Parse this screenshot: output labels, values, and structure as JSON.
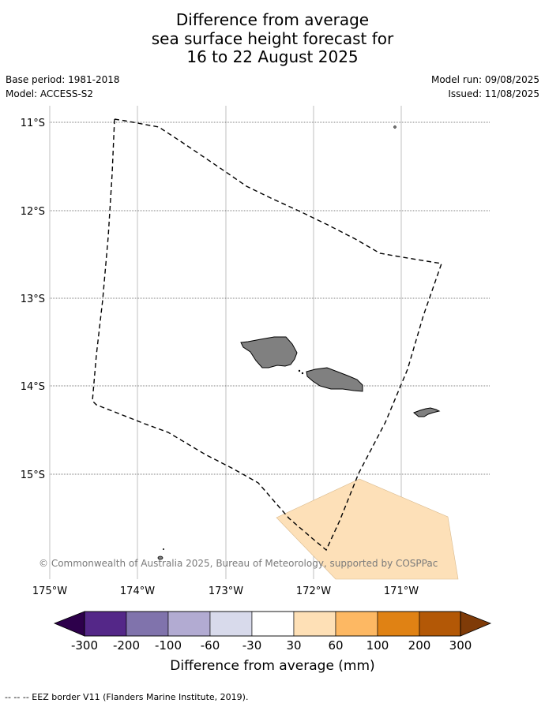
{
  "title": {
    "line1": "Difference from average",
    "line2": "sea surface height forecast for",
    "line3": "16 to 22 August 2025"
  },
  "meta": {
    "base_period": "Base period: 1981-2018",
    "model": "Model: ACCESS-S2",
    "model_run": "Model run: 09/08/2025",
    "issued": "Issued: 11/08/2025"
  },
  "map": {
    "latitude_labels": [
      "11°S",
      "12°S",
      "13°S",
      "14°S",
      "15°S"
    ],
    "longitude_labels": [
      "175°W",
      "174°W",
      "173°W",
      "172°W",
      "171°W"
    ],
    "extent": {
      "lon_min": -175,
      "lon_max": -170,
      "lat_top": -10.82,
      "lat_bottom": -16.2
    },
    "land_color": "#808080",
    "anomaly_color": "#fde0b8",
    "copyright": "© Commonwealth of Australia 2025, Bureau of Meteorology, supported by COSPPac"
  },
  "colorbar": {
    "title": "Difference from average (mm)",
    "tick_labels": [
      "-300",
      "-200",
      "-100",
      "-60",
      "-30",
      "30",
      "60",
      "100",
      "200",
      "300"
    ],
    "colors": [
      "#2d004b",
      "#542788",
      "#8073ac",
      "#b2abd2",
      "#d8daeb",
      "#ffffff",
      "#fee0b6",
      "#fdb863",
      "#e08214",
      "#b35806",
      "#7f3b08"
    ]
  },
  "footnote": "--  --  -- EEZ border V11 (Flanders Marine Institute, 2019)."
}
